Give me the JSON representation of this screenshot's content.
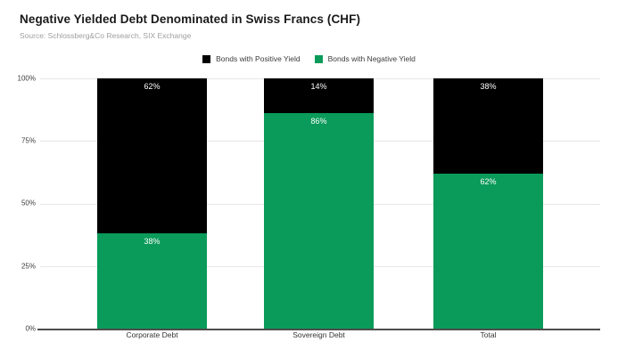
{
  "header": {
    "title": "Negative Yielded Debt Denominated in Swiss Francs (CHF)",
    "source": "Source: Schlossberg&Co Research, SIX Exchange"
  },
  "legend": {
    "items": [
      {
        "label": "Bonds with Positive Yield",
        "color": "#000000"
      },
      {
        "label": "Bonds with Negative Yield",
        "color": "#0a9b5a"
      }
    ]
  },
  "chart_data": {
    "type": "bar",
    "stacked": true,
    "title": "Negative Yielded Debt Denominated in Swiss Francs (CHF)",
    "categories": [
      "Corporate Debt",
      "Sovereign Debt",
      "Total"
    ],
    "series": [
      {
        "name": "Bonds with Positive Yield",
        "color": "#000000",
        "values": [
          62,
          14,
          38
        ],
        "labels": [
          "62%",
          "14%",
          "38%"
        ]
      },
      {
        "name": "Bonds with Negative Yield",
        "color": "#0a9b5a",
        "values": [
          38,
          86,
          62
        ],
        "labels": [
          "38%",
          "86%",
          "62%"
        ]
      }
    ],
    "ylim": [
      0,
      100
    ],
    "y_tick_labels": [
      "0%",
      "25%",
      "50%",
      "75%",
      "100%"
    ],
    "grid": true,
    "legend_position": "top",
    "value_unit": "%"
  },
  "colors": {
    "background": "#ffffff",
    "positive_series": "#000000",
    "negative_series": "#0a9b5a",
    "gridline": "#e7e7e7",
    "axis_line": "#4d4d4d",
    "title_text": "#1a1a1a",
    "source_text": "#9e9e9e",
    "axis_text": "#3c3c3c",
    "bar_value_text": "#ffffff"
  }
}
